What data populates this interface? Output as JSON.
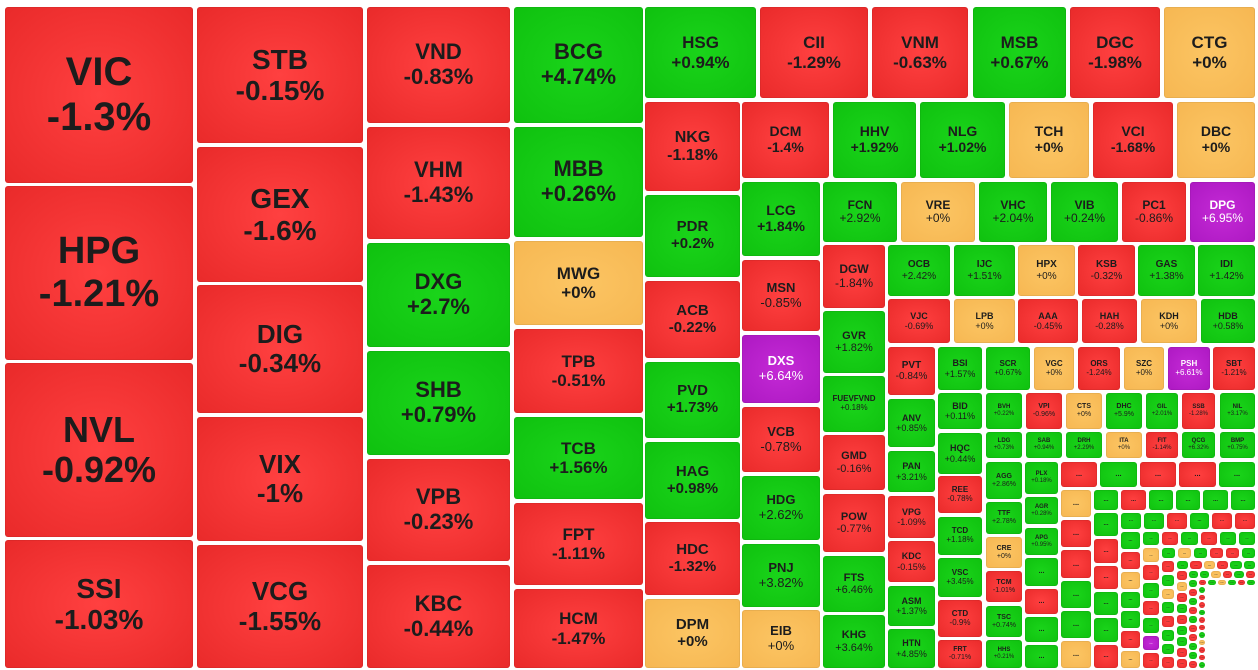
{
  "colors": {
    "down": "#ee2f2f",
    "up": "#13c813",
    "flat": "#f7be5a",
    "ceiling": "#b11bc8"
  },
  "tiles": [
    {
      "t": "VIC",
      "c": "-1.3%",
      "s": "r"
    },
    {
      "t": "HPG",
      "c": "-1.21%",
      "s": "r"
    },
    {
      "t": "NVL",
      "c": "-0.92%",
      "s": "r"
    },
    {
      "t": "SSI",
      "c": "-1.03%",
      "s": "r"
    },
    {
      "t": "STB",
      "c": "-0.15%",
      "s": "r"
    },
    {
      "t": "GEX",
      "c": "-1.6%",
      "s": "r"
    },
    {
      "t": "DIG",
      "c": "-0.34%",
      "s": "r"
    },
    {
      "t": "VIX",
      "c": "-1%",
      "s": "r"
    },
    {
      "t": "VCG",
      "c": "-1.55%",
      "s": "r"
    },
    {
      "t": "VND",
      "c": "-0.83%",
      "s": "r"
    },
    {
      "t": "VHM",
      "c": "-1.43%",
      "s": "r"
    },
    {
      "t": "DXG",
      "c": "+2.7%",
      "s": "g"
    },
    {
      "t": "SHB",
      "c": "+0.79%",
      "s": "g"
    },
    {
      "t": "VPB",
      "c": "-0.23%",
      "s": "r"
    },
    {
      "t": "KBC",
      "c": "-0.44%",
      "s": "r"
    },
    {
      "t": "BCG",
      "c": "+4.74%",
      "s": "g"
    },
    {
      "t": "MBB",
      "c": "+0.26%",
      "s": "g"
    },
    {
      "t": "MWG",
      "c": "+0%",
      "s": "o"
    },
    {
      "t": "TPB",
      "c": "-0.51%",
      "s": "r"
    },
    {
      "t": "TCB",
      "c": "+1.56%",
      "s": "g"
    },
    {
      "t": "FPT",
      "c": "-1.11%",
      "s": "r"
    },
    {
      "t": "HCM",
      "c": "-1.47%",
      "s": "r"
    },
    {
      "t": "HSG",
      "c": "+0.94%",
      "s": "g"
    },
    {
      "t": "CII",
      "c": "-1.29%",
      "s": "r"
    },
    {
      "t": "VNM",
      "c": "-0.63%",
      "s": "r"
    },
    {
      "t": "MSB",
      "c": "+0.67%",
      "s": "g"
    },
    {
      "t": "DGC",
      "c": "-1.98%",
      "s": "r"
    },
    {
      "t": "CTG",
      "c": "+0%",
      "s": "o"
    },
    {
      "t": "NKG",
      "c": "-1.18%",
      "s": "r"
    },
    {
      "t": "PDR",
      "c": "+0.2%",
      "s": "g"
    },
    {
      "t": "ACB",
      "c": "-0.22%",
      "s": "r"
    },
    {
      "t": "PVD",
      "c": "+1.73%",
      "s": "g"
    },
    {
      "t": "HAG",
      "c": "+0.98%",
      "s": "g"
    },
    {
      "t": "HDC",
      "c": "-1.32%",
      "s": "r"
    },
    {
      "t": "DPM",
      "c": "+0%",
      "s": "o"
    },
    {
      "t": "DCM",
      "c": "-1.4%",
      "s": "r"
    },
    {
      "t": "HHV",
      "c": "+1.92%",
      "s": "g"
    },
    {
      "t": "NLG",
      "c": "+1.02%",
      "s": "g"
    },
    {
      "t": "TCH",
      "c": "+0%",
      "s": "o"
    },
    {
      "t": "VCI",
      "c": "-1.68%",
      "s": "r"
    },
    {
      "t": "DBC",
      "c": "+0%",
      "s": "o"
    },
    {
      "t": "LCG",
      "c": "+1.84%",
      "s": "g"
    },
    {
      "t": "MSN",
      "c": "-0.85%",
      "s": "r"
    },
    {
      "t": "DXS",
      "c": "+6.64%",
      "s": "p"
    },
    {
      "t": "VCB",
      "c": "-0.78%",
      "s": "r"
    },
    {
      "t": "HDG",
      "c": "+2.62%",
      "s": "g"
    },
    {
      "t": "PNJ",
      "c": "+3.82%",
      "s": "g"
    },
    {
      "t": "EIB",
      "c": "+0%",
      "s": "o"
    },
    {
      "t": "FCN",
      "c": "+2.92%",
      "s": "g"
    },
    {
      "t": "VRE",
      "c": "+0%",
      "s": "o"
    },
    {
      "t": "VHC",
      "c": "+2.04%",
      "s": "g"
    },
    {
      "t": "VIB",
      "c": "+0.24%",
      "s": "g"
    },
    {
      "t": "PC1",
      "c": "-0.86%",
      "s": "r"
    },
    {
      "t": "DPG",
      "c": "+6.95%",
      "s": "p"
    },
    {
      "t": "DGW",
      "c": "-1.84%",
      "s": "r"
    },
    {
      "t": "GVR",
      "c": "+1.82%",
      "s": "g"
    },
    {
      "t": "FUEVFVND",
      "c": "+0.18%",
      "s": "g"
    },
    {
      "t": "GMD",
      "c": "-0.16%",
      "s": "r"
    },
    {
      "t": "POW",
      "c": "-0.77%",
      "s": "r"
    },
    {
      "t": "FTS",
      "c": "+6.46%",
      "s": "g"
    },
    {
      "t": "KHG",
      "c": "+3.64%",
      "s": "g"
    },
    {
      "t": "OCB",
      "c": "+2.42%",
      "s": "g"
    },
    {
      "t": "IJC",
      "c": "+1.51%",
      "s": "g"
    },
    {
      "t": "HPX",
      "c": "+0%",
      "s": "o"
    },
    {
      "t": "KSB",
      "c": "-0.32%",
      "s": "r"
    },
    {
      "t": "GAS",
      "c": "+1.38%",
      "s": "g"
    },
    {
      "t": "IDI",
      "c": "+1.42%",
      "s": "g"
    },
    {
      "t": "VJC",
      "c": "-0.69%",
      "s": "r"
    },
    {
      "t": "LPB",
      "c": "+0%",
      "s": "o"
    },
    {
      "t": "AAA",
      "c": "-0.45%",
      "s": "r"
    },
    {
      "t": "HAH",
      "c": "-0.28%",
      "s": "r"
    },
    {
      "t": "KDH",
      "c": "+0%",
      "s": "o"
    },
    {
      "t": "HDB",
      "c": "+0.58%",
      "s": "g"
    },
    {
      "t": "PVT",
      "c": "-0.84%",
      "s": "r"
    },
    {
      "t": "ANV",
      "c": "+0.85%",
      "s": "g"
    },
    {
      "t": "PAN",
      "c": "+3.21%",
      "s": "g"
    },
    {
      "t": "VPG",
      "c": "-1.09%",
      "s": "r"
    },
    {
      "t": "KDC",
      "c": "-0.15%",
      "s": "r"
    },
    {
      "t": "ASM",
      "c": "+1.37%",
      "s": "g"
    },
    {
      "t": "HTN",
      "c": "+4.85%",
      "s": "g"
    },
    {
      "t": "BSI",
      "c": "+1.57%",
      "s": "g"
    },
    {
      "t": "SCR",
      "c": "+0.67%",
      "s": "g"
    },
    {
      "t": "VGC",
      "c": "+0%",
      "s": "o"
    },
    {
      "t": "ORS",
      "c": "-1.24%",
      "s": "r"
    },
    {
      "t": "SZC",
      "c": "+0%",
      "s": "o"
    },
    {
      "t": "PSH",
      "c": "+6.61%",
      "s": "p"
    },
    {
      "t": "SBT",
      "c": "-1.21%",
      "s": "r"
    },
    {
      "t": "BID",
      "c": "+0.11%",
      "s": "g"
    },
    {
      "t": "HQC",
      "c": "+0.44%",
      "s": "g"
    },
    {
      "t": "REE",
      "c": "-0.78%",
      "s": "r"
    },
    {
      "t": "TCD",
      "c": "+1.18%",
      "s": "g"
    },
    {
      "t": "VSC",
      "c": "+3.45%",
      "s": "g"
    },
    {
      "t": "CTD",
      "c": "-0.9%",
      "s": "r"
    },
    {
      "t": "FRT",
      "c": "-0.71%",
      "s": "r"
    },
    {
      "t": "BVH",
      "c": "+0.22%",
      "s": "g"
    },
    {
      "t": "VPI",
      "c": "-0.96%",
      "s": "r"
    },
    {
      "t": "CTS",
      "c": "+0%",
      "s": "o"
    },
    {
      "t": "DHC",
      "c": "+5.9%",
      "s": "g"
    },
    {
      "t": "GIL",
      "c": "+2.01%",
      "s": "g"
    },
    {
      "t": "SSB",
      "c": "-1.28%",
      "s": "r"
    },
    {
      "t": "NIL",
      "c": "+3.17%",
      "s": "g"
    },
    {
      "t": "LDG",
      "c": "+0.73%",
      "s": "g"
    },
    {
      "t": "SAB",
      "c": "+0.94%",
      "s": "g"
    },
    {
      "t": "DRH",
      "c": "+2.29%",
      "s": "g"
    },
    {
      "t": "ITA",
      "c": "+0%",
      "s": "o"
    },
    {
      "t": "FIT",
      "c": "-1.14%",
      "s": "r"
    },
    {
      "t": "QCG",
      "c": "+6.32%",
      "s": "g"
    },
    {
      "t": "BMP",
      "c": "+0.75%",
      "s": "g"
    },
    {
      "t": "AGG",
      "c": "+2.86%",
      "s": "g"
    },
    {
      "t": "TTF",
      "c": "+2.78%",
      "s": "g"
    },
    {
      "t": "CRE",
      "c": "+0%",
      "s": "o"
    },
    {
      "t": "TCM",
      "c": "-1.01%",
      "s": "r"
    },
    {
      "t": "TSC",
      "c": "+0.74%",
      "s": "g"
    },
    {
      "t": "HHS",
      "c": "+0.21%",
      "s": "g"
    },
    {
      "t": "PLX",
      "c": "+0.18%",
      "s": "g"
    },
    {
      "t": "AGR",
      "c": "+0.28%",
      "s": "g"
    },
    {
      "t": "APG",
      "c": "+0.95%",
      "s": "g"
    },
    {
      "t": "...",
      "c": "",
      "s": "g"
    },
    {
      "t": "...",
      "c": "",
      "s": "r"
    },
    {
      "t": "...",
      "c": "",
      "s": "g"
    },
    {
      "t": "...",
      "c": "",
      "s": "g"
    }
  ],
  "small_label": "...",
  "small_tiles": [
    "r",
    "g",
    "r",
    "r",
    "g",
    "o",
    "r",
    "r",
    "g",
    "g",
    "o",
    "g",
    "r",
    "g",
    "g",
    "g",
    "g",
    "g",
    "r",
    "r",
    "g",
    "g",
    "r",
    "g",
    "g",
    "r",
    "g",
    "r",
    "r",
    "g",
    "r",
    "o",
    "g",
    "g",
    "r",
    "o",
    "g",
    "r",
    "g",
    "r",
    "g",
    "g",
    "o",
    "r",
    "g",
    "r",
    "g",
    "p",
    "r",
    "g",
    "o",
    "g",
    "r",
    "r",
    "g",
    "r",
    "g",
    "o",
    "g",
    "r",
    "g",
    "g",
    "r",
    "g",
    "r",
    "o",
    "r",
    "g",
    "g",
    "r",
    "o",
    "r",
    "g",
    "r",
    "g",
    "g",
    "r",
    "r",
    "g",
    "g",
    "o",
    "r",
    "g",
    "r",
    "g",
    "r",
    "g",
    "r",
    "g",
    "r",
    "r",
    "g",
    "g",
    "r",
    "r",
    "g",
    "o",
    "g",
    "r",
    "g",
    "g",
    "r"
  ]
}
